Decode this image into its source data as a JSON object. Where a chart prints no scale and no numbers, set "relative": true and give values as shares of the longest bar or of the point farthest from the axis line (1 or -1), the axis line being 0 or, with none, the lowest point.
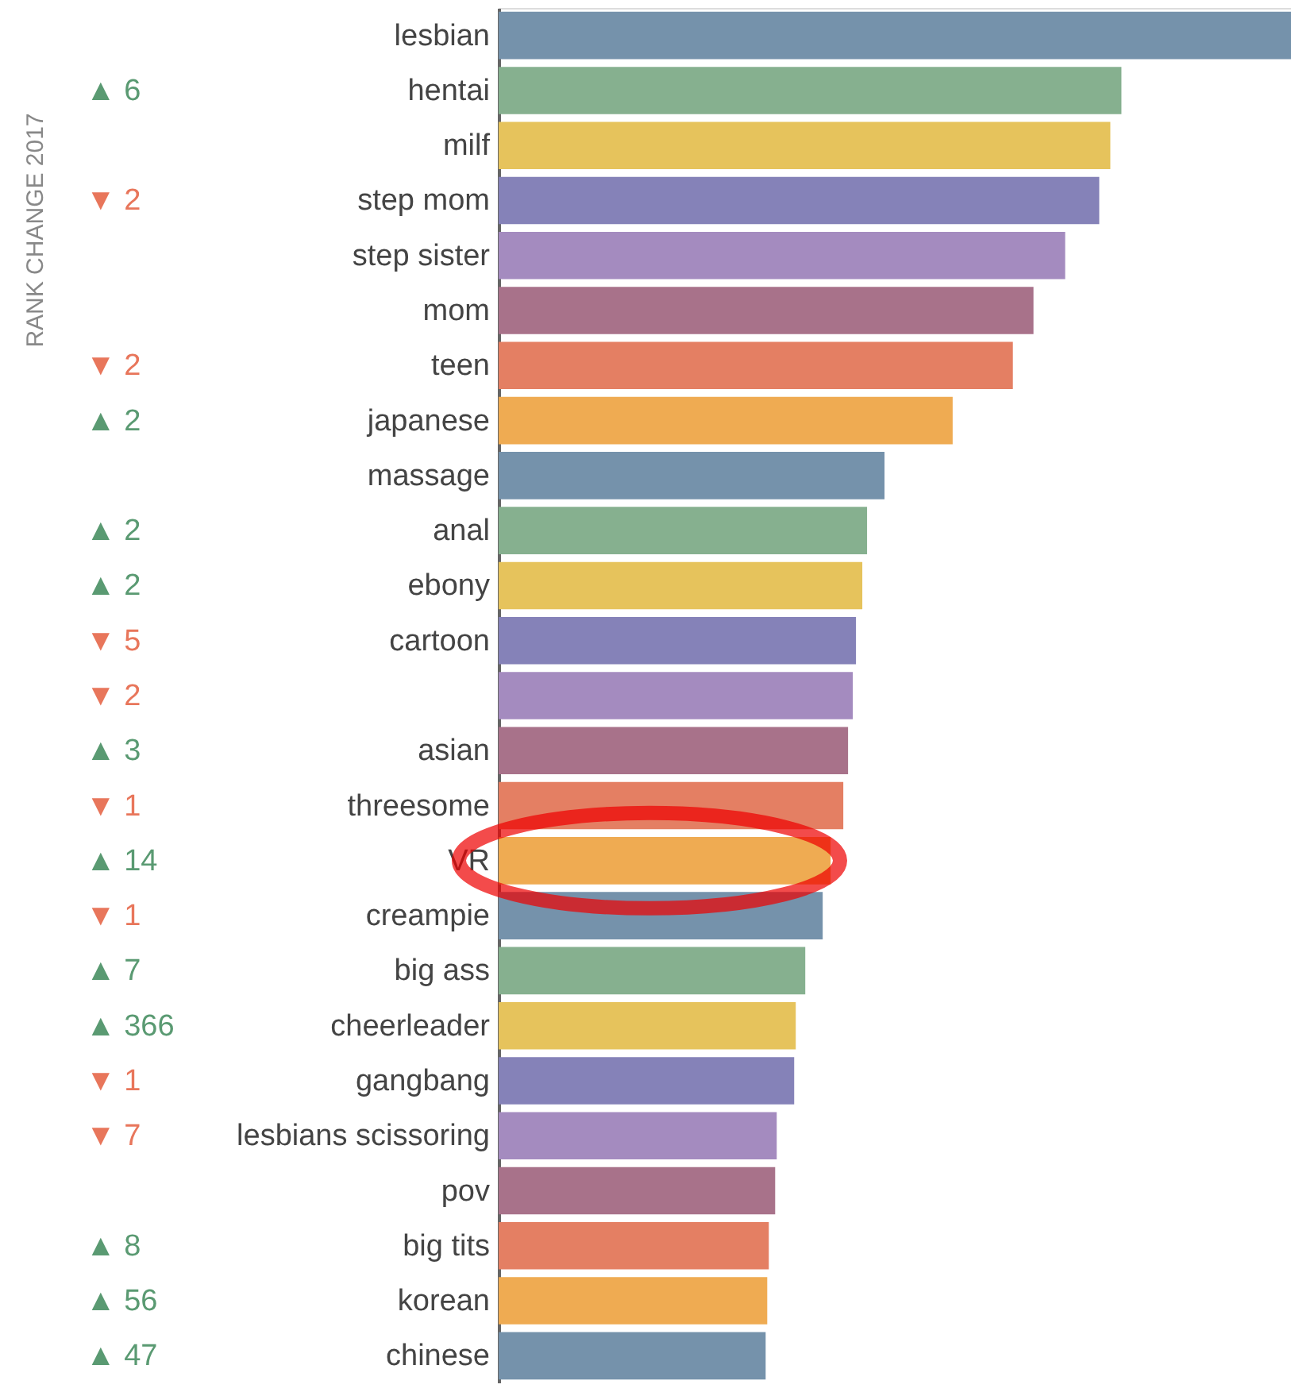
{
  "chart_data": {
    "type": "bar",
    "orientation": "horizontal",
    "relative": true,
    "categories": [
      "lesbian",
      "hentai",
      "milf",
      "step mom",
      "step sister",
      "mom",
      "teen",
      "japanese",
      "massage",
      "anal",
      "ebony",
      "cartoon",
      null,
      "asian",
      "threesome",
      "VR",
      "creampie",
      "big ass",
      "cheerleader",
      "gangbang",
      "lesbians scissoring",
      "pov",
      "big tits",
      "korean",
      "chinese"
    ],
    "values": [
      1,
      0.786,
      0.772,
      0.758,
      0.715,
      0.675,
      0.649,
      0.573,
      0.487,
      0.465,
      0.459,
      0.451,
      0.447,
      0.441,
      0.435,
      0.419,
      0.409,
      0.387,
      0.375,
      0.373,
      0.351,
      0.349,
      0.341,
      0.339,
      0.337
    ],
    "colors": [
      "#7592ab",
      "#86b08f",
      "#e6c35c",
      "#8582b8",
      "#a48bbf",
      "#a8728a",
      "#e47f63",
      "#efab52",
      "#7592ab",
      "#86b08f",
      "#e6c35c",
      "#8582b8",
      "#a48bbf",
      "#a8728a",
      "#e47f63",
      "#efab52",
      "#7592ab",
      "#86b08f",
      "#e6c35c",
      "#8582b8",
      "#a48bbf",
      "#a8728a",
      "#e47f63",
      "#efab52",
      "#7592ab"
    ],
    "annotations": [
      "RANK CHANGE 2017",
      "▲ 6",
      "▼ 2",
      "▼ 2",
      "▲ 2",
      "▲ 2",
      "▲ 2",
      "▼ 5",
      "▼ 2",
      "▲ 3",
      "▼ 1",
      "▲ 14",
      "▼ 1",
      "▲ 7",
      "▲ 366",
      "▼ 1",
      "▼ 7",
      "▲ 8",
      "▲ 56",
      "▲ 47"
    ]
  }
}
